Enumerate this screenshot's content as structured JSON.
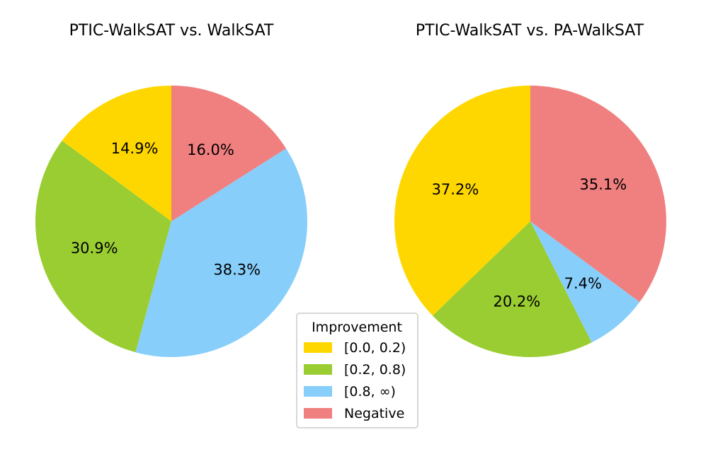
{
  "chart_data": [
    {
      "type": "pie",
      "title": "PTIC-WalkSAT vs. WalkSAT",
      "categories": [
        "[0.0, 0.2)",
        "[0.2, 0.8)",
        "[0.8, ∞)",
        "Negative"
      ],
      "values": [
        14.9,
        30.9,
        38.3,
        16.0
      ],
      "labels": [
        "14.9%",
        "30.9%",
        "38.3%",
        "16.0%"
      ]
    },
    {
      "type": "pie",
      "title": "PTIC-WalkSAT vs. PA-WalkSAT",
      "categories": [
        "[0.0, 0.2)",
        "[0.2, 0.8)",
        "[0.8, ∞)",
        "Negative"
      ],
      "values": [
        37.2,
        20.2,
        7.4,
        35.1
      ],
      "labels": [
        "37.2%",
        "20.2%",
        "7.4%",
        "35.1%"
      ]
    }
  ],
  "legend": {
    "title": "Improvement",
    "items": [
      "[0.0, 0.2)",
      "[0.2, 0.8)",
      "[0.8, ∞)",
      "Negative"
    ]
  },
  "colors": [
    "#FFD700",
    "#9ACD32",
    "#87CEFA",
    "#F08080"
  ]
}
